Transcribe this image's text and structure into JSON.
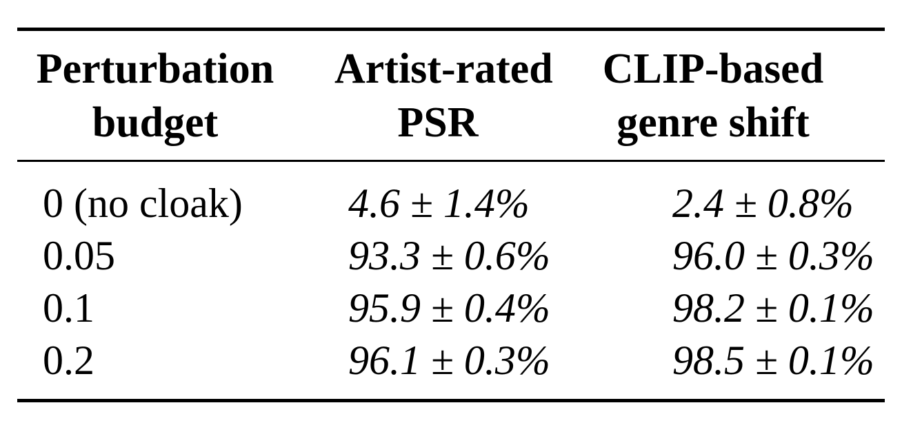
{
  "table": {
    "headers": [
      {
        "line1": "Perturbation",
        "line2": "budget"
      },
      {
        "line1": "Artist-rated",
        "line2": "PSR"
      },
      {
        "line1": "CLIP-based",
        "line2": "genre shift"
      }
    ],
    "rows": [
      {
        "budget": "0 (no cloak)",
        "psr": "4.6 ± 1.4%",
        "clip": "2.4 ± 0.8%"
      },
      {
        "budget": "0.05",
        "psr": "93.3 ± 0.6%",
        "clip": "96.0 ± 0.3%"
      },
      {
        "budget": "0.1",
        "psr": "95.9 ± 0.4%",
        "clip": "98.2 ± 0.1%"
      },
      {
        "budget": "0.2",
        "psr": "96.1 ± 0.3%",
        "clip": "98.5 ± 0.1%"
      }
    ]
  }
}
